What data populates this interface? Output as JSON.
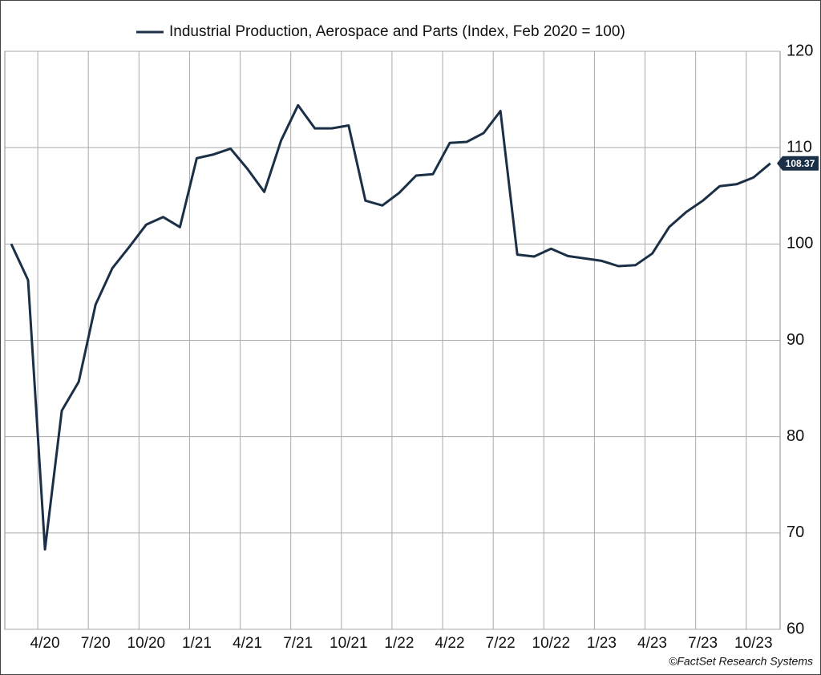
{
  "chart_data": {
    "type": "line",
    "categories": [
      null,
      null,
      "4/20",
      null,
      null,
      "7/20",
      null,
      null,
      "10/20",
      null,
      null,
      "1/21",
      null,
      null,
      "4/21",
      null,
      null,
      "7/21",
      null,
      null,
      "10/21",
      null,
      null,
      "1/22",
      null,
      null,
      "4/22",
      null,
      null,
      "7/22",
      null,
      null,
      "10/22",
      null,
      null,
      "1/23",
      null,
      null,
      "4/23",
      null,
      null,
      "7/23",
      null,
      null,
      "10/23",
      null
    ],
    "series": [
      {
        "name": "Industrial Production, Aerospace and Parts (Index, Feb 2020 = 100)",
        "color": "#1b3047",
        "values": [
          100,
          96.25,
          68.3,
          82.7,
          85.7,
          93.7,
          97.5,
          99.7,
          102.0,
          102.8,
          101.75,
          108.9,
          109.3,
          109.9,
          107.8,
          105.4,
          110.75,
          114.4,
          112.0,
          112.0,
          112.3,
          104.5,
          104.0,
          105.3,
          107.1,
          107.25,
          110.5,
          110.6,
          111.5,
          113.8,
          98.9,
          98.7,
          99.5,
          98.75,
          98.5,
          98.25,
          97.7,
          97.8,
          99.0,
          101.75,
          103.3,
          104.5,
          106.0,
          106.2,
          106.9,
          108.37
        ]
      }
    ],
    "ylim": [
      60,
      120
    ],
    "yticks": [
      60,
      70,
      80,
      90,
      100,
      110,
      120
    ],
    "grid": true,
    "legend": "top",
    "source": "©FactSet Research Systems"
  }
}
